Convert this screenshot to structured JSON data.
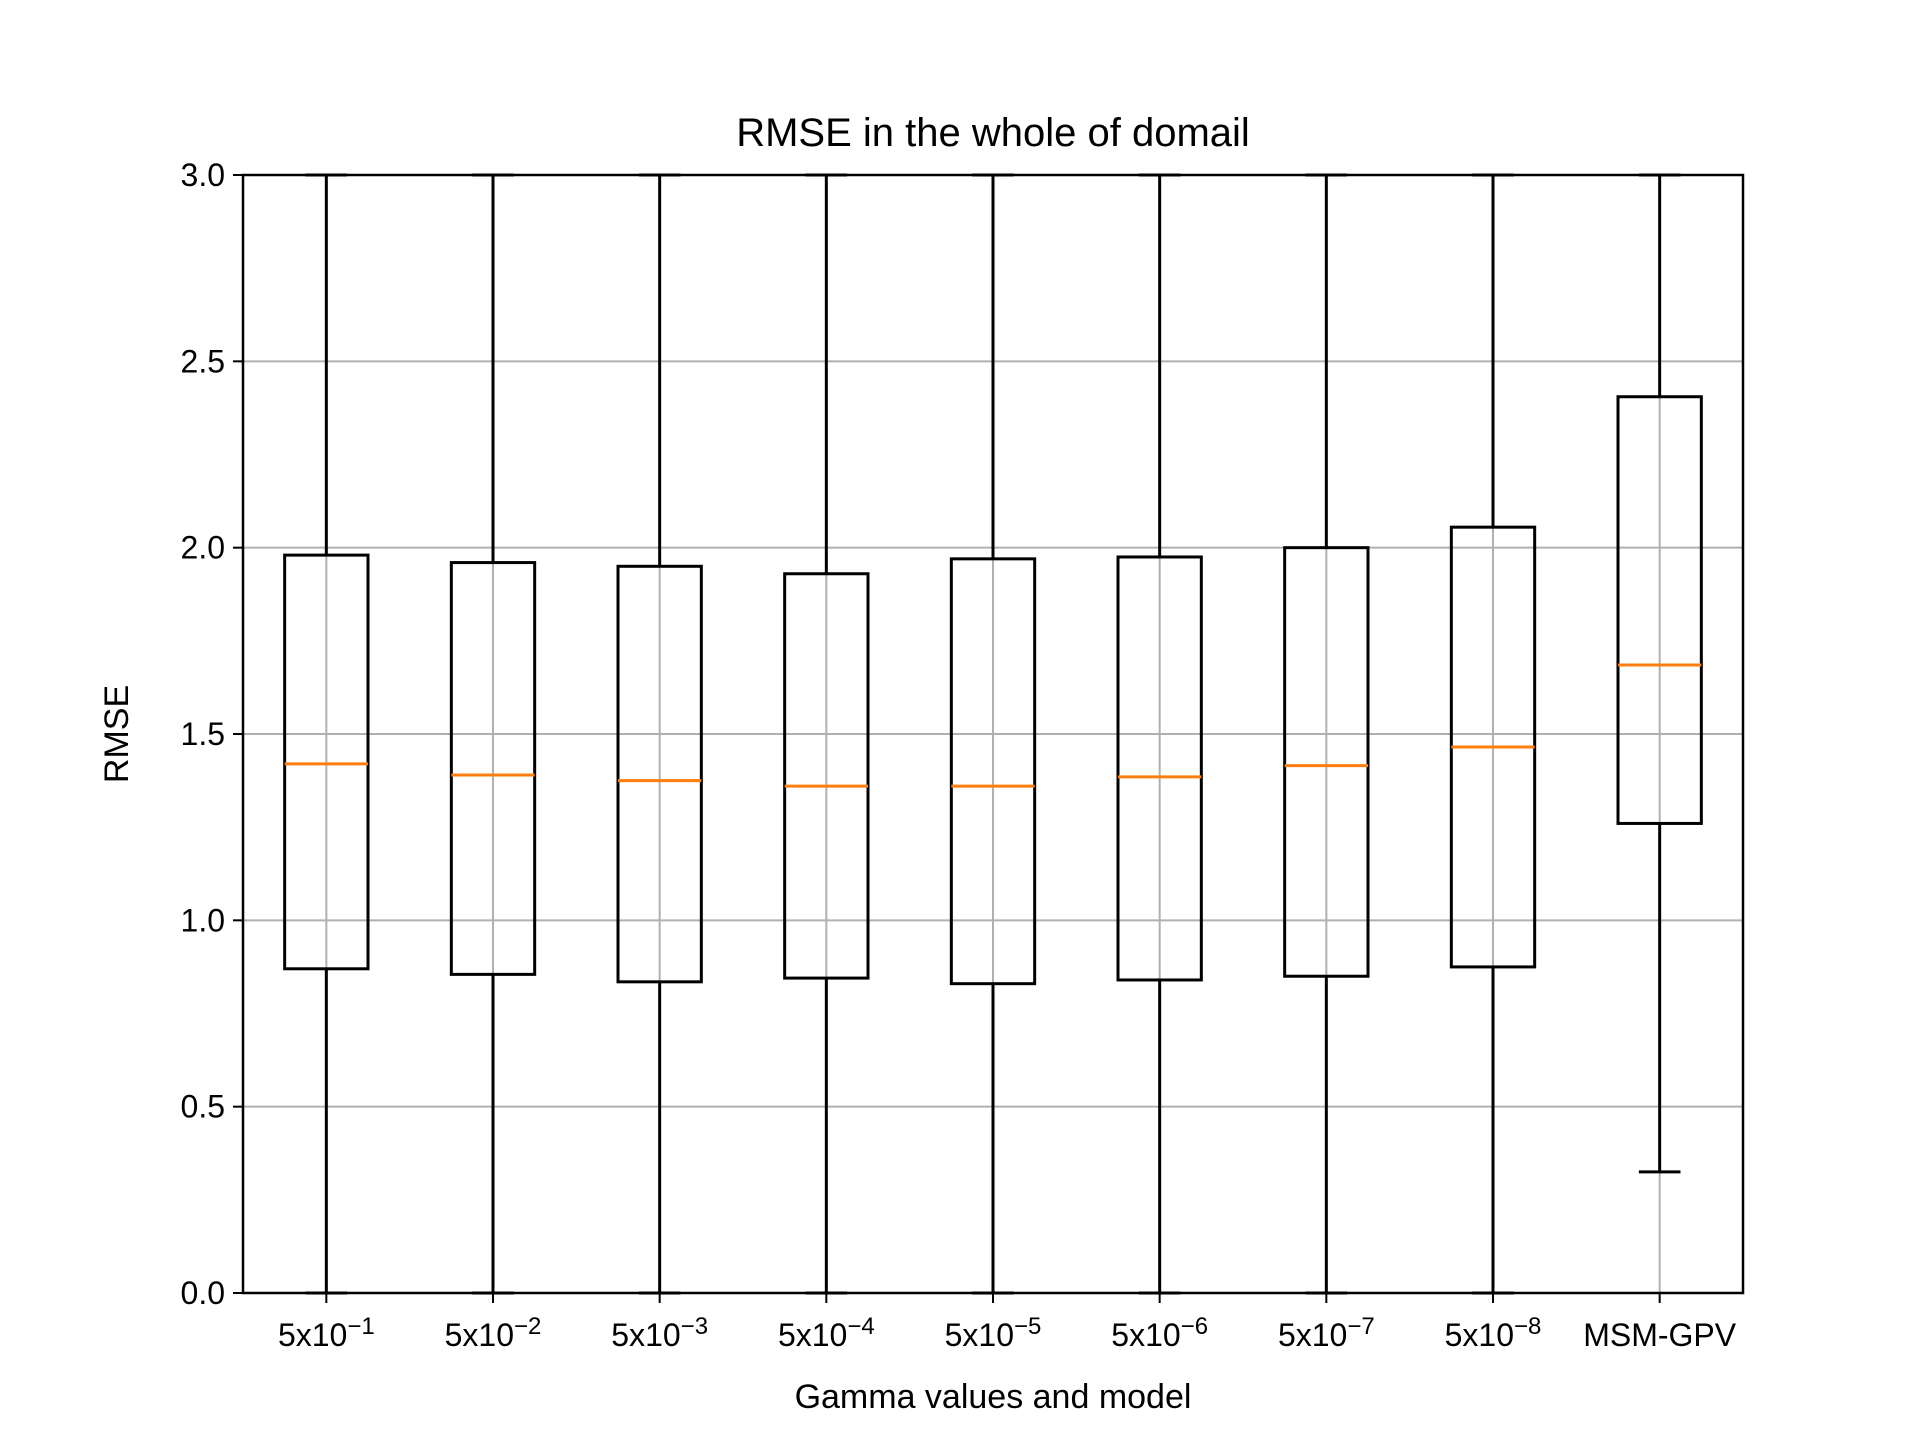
{
  "chart_data": {
    "type": "boxplot",
    "title": "RMSE in the whole of domail",
    "xlabel": "Gamma values and model",
    "ylabel": "RMSE",
    "ylim": [
      0.0,
      3.0
    ],
    "yticks": [
      "0.0",
      "0.5",
      "1.0",
      "1.5",
      "2.0",
      "2.5",
      "3.0"
    ],
    "grid": true,
    "categories": [
      {
        "base": "5x10",
        "exp": "−1"
      },
      {
        "base": "5x10",
        "exp": "−2"
      },
      {
        "base": "5x10",
        "exp": "−3"
      },
      {
        "base": "5x10",
        "exp": "−4"
      },
      {
        "base": "5x10",
        "exp": "−5"
      },
      {
        "base": "5x10",
        "exp": "−6"
      },
      {
        "base": "5x10",
        "exp": "−7"
      },
      {
        "base": "5x10",
        "exp": "−8"
      },
      {
        "base": "MSM-GPV",
        "exp": ""
      }
    ],
    "boxes": [
      {
        "whislo": 0.0,
        "q1": 0.87,
        "med": 1.42,
        "q3": 1.98,
        "whishi": 3.0
      },
      {
        "whislo": 0.0,
        "q1": 0.855,
        "med": 1.39,
        "q3": 1.96,
        "whishi": 3.0
      },
      {
        "whislo": 0.0,
        "q1": 0.835,
        "med": 1.375,
        "q3": 1.95,
        "whishi": 3.0
      },
      {
        "whislo": 0.0,
        "q1": 0.845,
        "med": 1.36,
        "q3": 1.93,
        "whishi": 3.0
      },
      {
        "whislo": 0.0,
        "q1": 0.83,
        "med": 1.36,
        "q3": 1.97,
        "whishi": 3.0
      },
      {
        "whislo": 0.0,
        "q1": 0.84,
        "med": 1.385,
        "q3": 1.975,
        "whishi": 3.0
      },
      {
        "whislo": 0.0,
        "q1": 0.85,
        "med": 1.415,
        "q3": 2.0,
        "whishi": 3.0
      },
      {
        "whislo": 0.0,
        "q1": 0.875,
        "med": 1.465,
        "q3": 2.055,
        "whishi": 3.0
      },
      {
        "whislo": 0.325,
        "q1": 1.26,
        "med": 1.685,
        "q3": 2.405,
        "whishi": 3.0
      }
    ],
    "colors": {
      "box": "#000000",
      "median": "#ff7f0e",
      "grid": "#b0b0b0"
    }
  }
}
